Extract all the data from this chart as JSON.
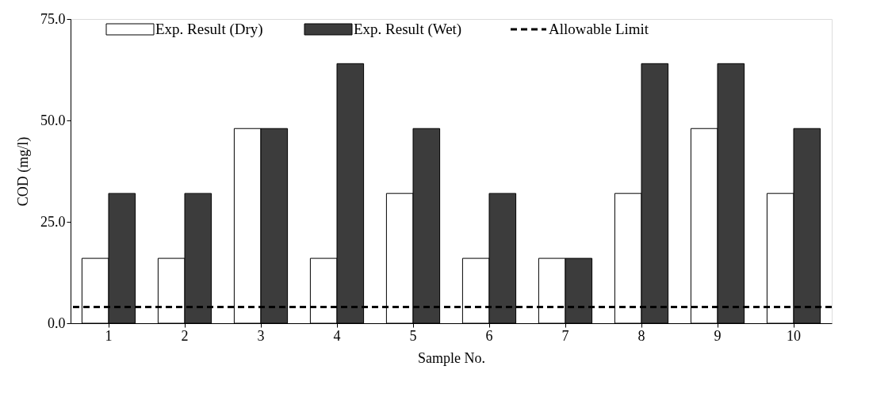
{
  "chart_data": {
    "type": "bar",
    "xlabel": "Sample No.",
    "ylabel": "COD (mg/l)",
    "categories": [
      "1",
      "2",
      "3",
      "4",
      "5",
      "6",
      "7",
      "8",
      "9",
      "10"
    ],
    "series": [
      {
        "name": "Exp. Result (Dry)",
        "color": "#ffffff",
        "values": [
          16,
          16,
          48,
          16,
          32,
          16,
          16,
          32,
          48,
          32
        ]
      },
      {
        "name": "Exp. Result (Wet)",
        "color": "#3c3c3c",
        "values": [
          32,
          32,
          48,
          64,
          48,
          32,
          16,
          64,
          64,
          48
        ]
      }
    ],
    "ref_lines": [
      {
        "axis": "y",
        "value": 4,
        "label": "Allowable Limit",
        "color": "#000000",
        "line_style": "dashed"
      }
    ],
    "ylim": [
      0,
      75
    ],
    "yticks": [
      {
        "value": 0,
        "label": "0.0"
      },
      {
        "value": 25,
        "label": "25.0"
      },
      {
        "value": 50,
        "label": "50.0"
      },
      {
        "value": 75,
        "label": "75.0"
      }
    ],
    "grid": false,
    "legend": "top"
  }
}
